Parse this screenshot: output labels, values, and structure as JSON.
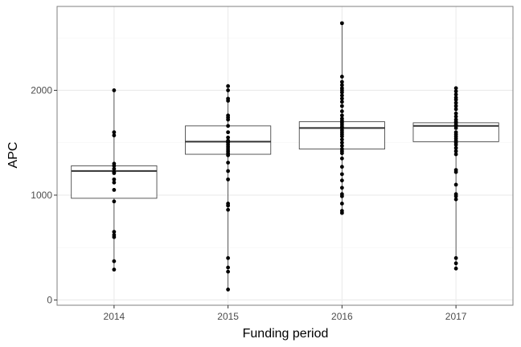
{
  "chart_data": {
    "type": "boxplot",
    "xlabel": "Funding period",
    "ylabel": "APC",
    "ylim": [
      -50,
      2800
    ],
    "y_ticks": [
      0,
      1000,
      2000
    ],
    "y_tick_labels": [
      "0",
      "1000",
      "2000"
    ],
    "grid": true,
    "legend": "none",
    "categories": [
      "2014",
      "2015",
      "2016",
      "2017"
    ],
    "boxes": [
      {
        "category": "2014",
        "min": 290,
        "q1": 970,
        "median": 1230,
        "q3": 1280,
        "max": 2000
      },
      {
        "category": "2015",
        "min": 100,
        "q1": 1390,
        "median": 1510,
        "q3": 1660,
        "max": 2040
      },
      {
        "category": "2016",
        "min": 830,
        "q1": 1440,
        "median": 1640,
        "q3": 1700,
        "max": 2640
      },
      {
        "category": "2017",
        "min": 300,
        "q1": 1510,
        "median": 1660,
        "q3": 1690,
        "max": 2020
      }
    ],
    "points": [
      {
        "category": "2014",
        "values": [
          2000,
          1600,
          1570,
          1300,
          1280,
          1250,
          1220,
          1210,
          1150,
          1120,
          1050,
          940,
          650,
          620,
          600,
          370,
          290
        ]
      },
      {
        "category": "2015",
        "values": [
          2040,
          2000,
          1920,
          1900,
          1760,
          1740,
          1720,
          1660,
          1600,
          1550,
          1520,
          1510,
          1500,
          1480,
          1460,
          1440,
          1420,
          1400,
          1380,
          1310,
          1230,
          1150,
          920,
          900,
          860,
          400,
          310,
          270,
          100
        ]
      },
      {
        "category": "2016",
        "values": [
          2640,
          2130,
          2080,
          2050,
          2020,
          2000,
          1980,
          1950,
          1920,
          1890,
          1850,
          1800,
          1760,
          1730,
          1710,
          1690,
          1670,
          1650,
          1640,
          1620,
          1600,
          1580,
          1560,
          1530,
          1500,
          1470,
          1440,
          1420,
          1400,
          1350,
          1270,
          1200,
          1140,
          1070,
          1010,
          990,
          920,
          850,
          830
        ]
      },
      {
        "category": "2017",
        "values": [
          2020,
          1990,
          1960,
          1930,
          1910,
          1880,
          1850,
          1820,
          1780,
          1750,
          1720,
          1700,
          1690,
          1670,
          1660,
          1640,
          1600,
          1580,
          1560,
          1540,
          1520,
          1500,
          1480,
          1450,
          1420,
          1390,
          1240,
          1220,
          1100,
          1010,
          990,
          960,
          400,
          350,
          300
        ]
      }
    ]
  },
  "colors": {
    "background": "#ffffff",
    "panel_border": "#7f7f7f",
    "grid_major": "#ebebeb",
    "grid_minor": "#f5f5f5",
    "box_line": "#333333",
    "point": "#000000",
    "tick_label": "#4d4d4d"
  }
}
